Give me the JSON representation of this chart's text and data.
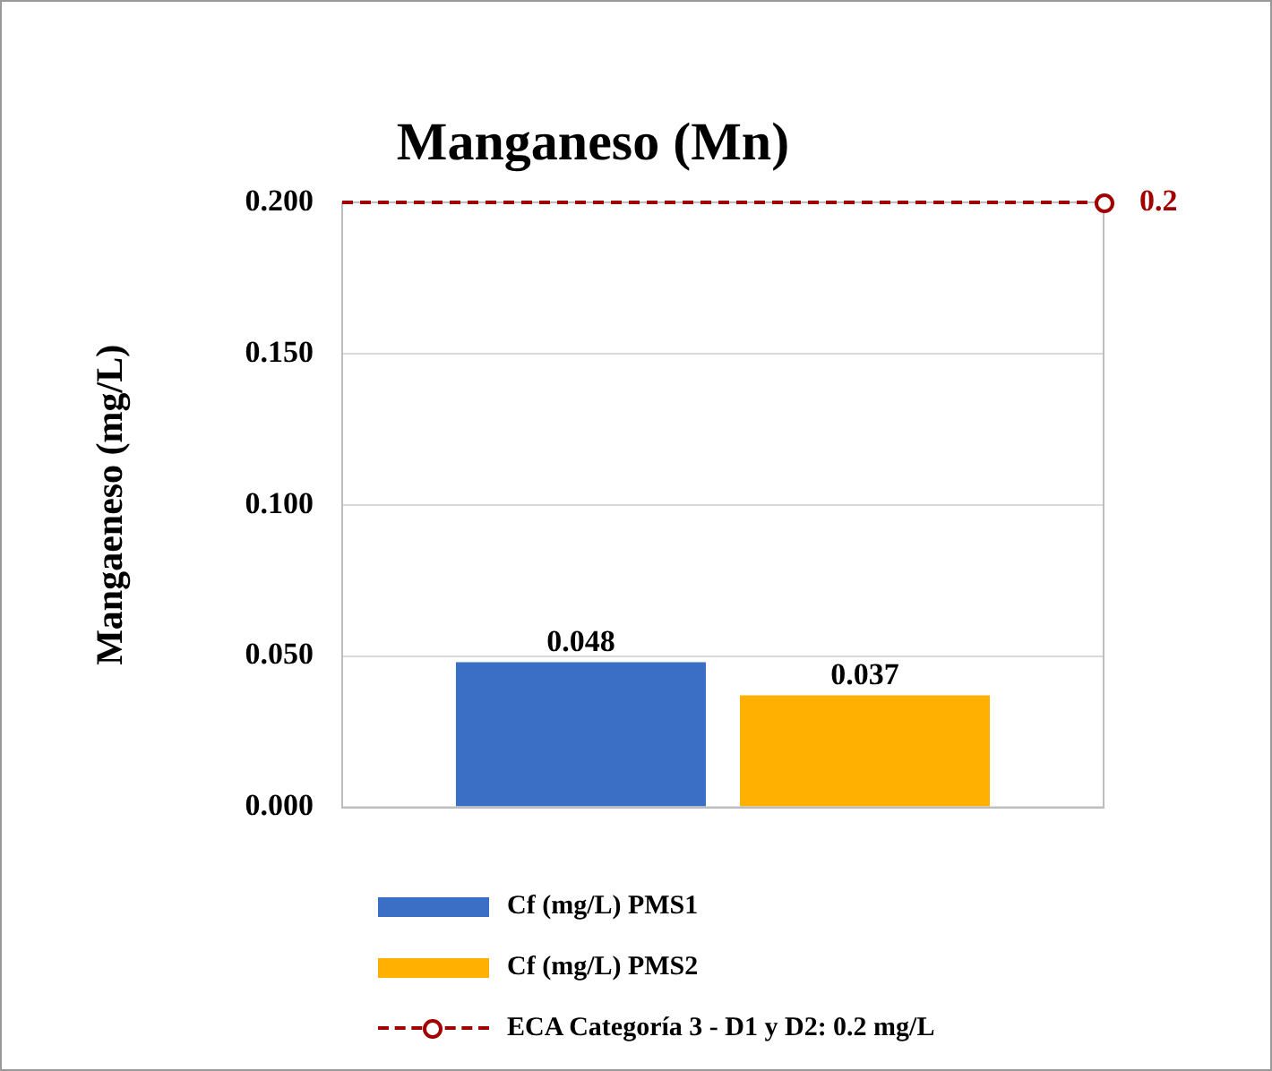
{
  "chart_data": {
    "type": "bar",
    "title": "Manganeso (Mn)",
    "ylabel": "Mangaeneso (mg/L)",
    "categories": [
      null
    ],
    "series": [
      {
        "name": "Cf (mg/L) PMS1",
        "color": "#3b6fc6",
        "values": [
          0.048
        ]
      },
      {
        "name": "Cf (mg/L) PMS2",
        "color": "#ffb000",
        "values": [
          0.037
        ]
      }
    ],
    "ylim": [
      0,
      0.2
    ],
    "yticks": [
      {
        "value": 0,
        "label": "0.000"
      },
      {
        "value": 0.05,
        "label": "0.050"
      },
      {
        "value": 0.1,
        "label": "0.100"
      },
      {
        "value": 0.15,
        "label": "0.150"
      },
      {
        "value": 0.2,
        "label": "0.200"
      }
    ],
    "ref_lines": [
      {
        "axis": "y",
        "value": 0.2,
        "label": "ECA Categoría 3 - D1 y D2: 0.2 mg/L",
        "color": "#a00000",
        "line_style": "dashed"
      }
    ],
    "annotations": [
      "0.2"
    ],
    "data_labels": true,
    "grid": "y",
    "legend": "bottom"
  }
}
